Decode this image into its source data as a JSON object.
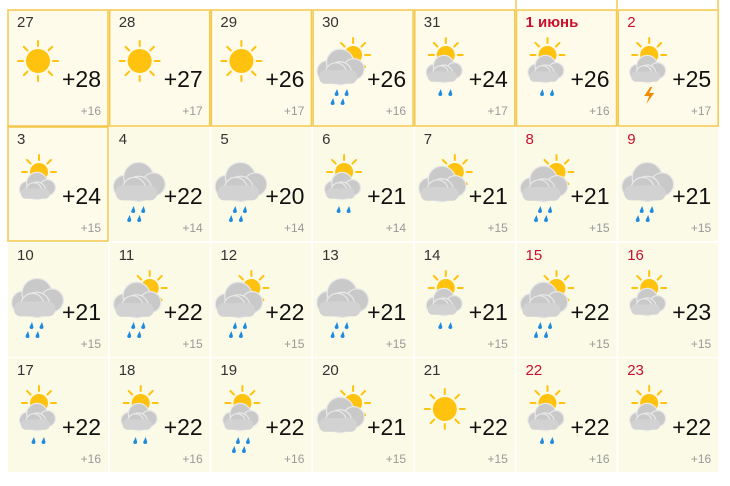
{
  "days": [
    {
      "date": "27",
      "high": "+28",
      "low": "+16"
    },
    {
      "date": "28",
      "high": "+27",
      "low": "+17"
    },
    {
      "date": "29",
      "high": "+26",
      "low": "+17"
    },
    {
      "date": "30",
      "high": "+26",
      "low": "+16"
    },
    {
      "date": "31",
      "high": "+24",
      "low": "+17"
    },
    {
      "date": "1 июнь",
      "high": "+26",
      "low": "+16"
    },
    {
      "date": "2",
      "high": "+25",
      "low": "+17"
    },
    {
      "date": "3",
      "high": "+24",
      "low": "+15"
    },
    {
      "date": "4",
      "high": "+22",
      "low": "+14"
    },
    {
      "date": "5",
      "high": "+20",
      "low": "+14"
    },
    {
      "date": "6",
      "high": "+21",
      "low": "+14"
    },
    {
      "date": "7",
      "high": "+21",
      "low": "+15"
    },
    {
      "date": "8",
      "high": "+21",
      "low": "+15"
    },
    {
      "date": "9",
      "high": "+21",
      "low": "+15"
    },
    {
      "date": "10",
      "high": "+21",
      "low": "+15"
    },
    {
      "date": "11",
      "high": "+22",
      "low": "+15"
    },
    {
      "date": "12",
      "high": "+22",
      "low": "+15"
    },
    {
      "date": "13",
      "high": "+21",
      "low": "+15"
    },
    {
      "date": "14",
      "high": "+21",
      "low": "+15"
    },
    {
      "date": "15",
      "high": "+22",
      "low": "+15"
    },
    {
      "date": "16",
      "high": "+23",
      "low": "+15"
    },
    {
      "date": "17",
      "high": "+22",
      "low": "+16"
    },
    {
      "date": "18",
      "high": "+22",
      "low": "+16"
    },
    {
      "date": "19",
      "high": "+22",
      "low": "+16"
    },
    {
      "date": "20",
      "high": "+21",
      "low": "+15"
    },
    {
      "date": "21",
      "high": "+22",
      "low": "+15"
    },
    {
      "date": "22",
      "high": "+22",
      "low": "+16"
    },
    {
      "date": "23",
      "high": "+22",
      "low": "+16"
    }
  ]
}
